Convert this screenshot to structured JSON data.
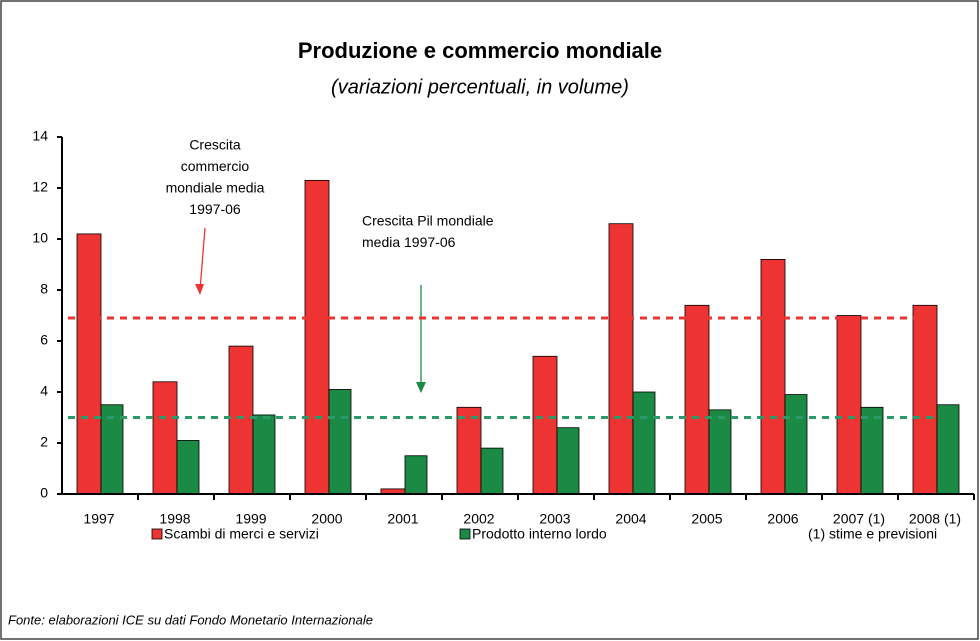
{
  "chart_data": {
    "type": "bar",
    "title": "Produzione e commercio mondiale",
    "subtitle": "(variazioni percentuali, in volume)",
    "categories": [
      "1997",
      "1998",
      "1999",
      "2000",
      "2001",
      "2002",
      "2003",
      "2004",
      "2005",
      "2006",
      "2007 (1)",
      "2008 (1)"
    ],
    "series": [
      {
        "name": "Scambi di merci e servizi",
        "color": "#ee3333",
        "values": [
          10.2,
          4.4,
          5.8,
          12.3,
          0.2,
          3.4,
          5.4,
          10.6,
          7.4,
          9.2,
          7.0,
          7.4
        ]
      },
      {
        "name": "Prodotto interno lordo",
        "color": "#1a8a45",
        "values": [
          3.5,
          2.1,
          3.1,
          4.1,
          1.5,
          1.8,
          2.6,
          4.0,
          3.3,
          3.9,
          3.4,
          3.5
        ]
      }
    ],
    "ylim": [
      0,
      14
    ],
    "yticks": [
      0,
      2,
      4,
      6,
      8,
      10,
      12,
      14
    ],
    "reference_lines": [
      {
        "value": 6.9,
        "color": "#ee3333"
      },
      {
        "value": 3.0,
        "color": "#2a9a6a"
      }
    ],
    "annotations": [
      {
        "lines": [
          "Crescita",
          "commercio",
          "mondiale media",
          "1997-06"
        ]
      },
      {
        "lines": [
          "Crescita Pil mondiale",
          "media 1997-06"
        ]
      }
    ],
    "footnote": "(1) stime e previsioni",
    "source": "Fonte: elaborazioni ICE su dati Fondo Monetario Internazionale"
  }
}
